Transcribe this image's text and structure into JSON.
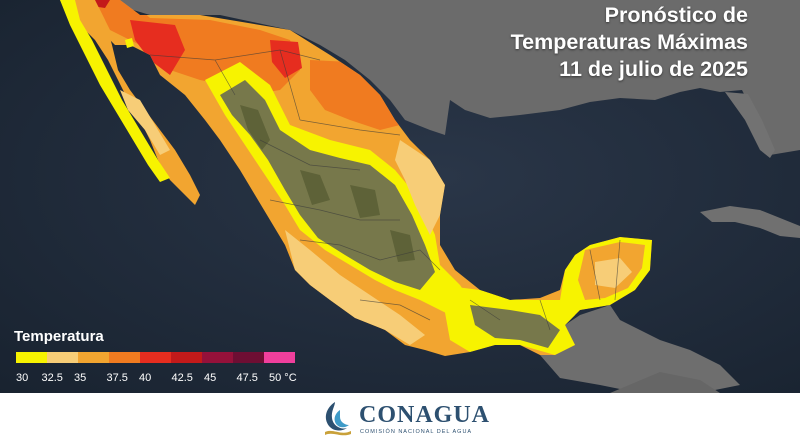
{
  "title": {
    "line1": "Pronóstico de",
    "line2": "Temperaturas Máximas",
    "line3": "11 de julio de 2025"
  },
  "legend": {
    "title": "Temperatura",
    "unit": "°C",
    "ticks": [
      "30",
      "32.5",
      "35",
      "37.5",
      "40",
      "42.5",
      "45",
      "47.5",
      "50 °C"
    ],
    "colors": [
      "#f7f300",
      "#f7cd77",
      "#f2a530",
      "#f07b20",
      "#e62d1f",
      "#c31a1a",
      "#95113a",
      "#6e0e33",
      "#f03f9c"
    ]
  },
  "map": {
    "colors": {
      "ocean": "#1f2a3a",
      "land_foreign": "#6b6b6b",
      "terrain": "#77784b",
      "band_30": "#f7f300",
      "band_32_5": "#f7cd77",
      "band_35": "#f2a530",
      "band_37_5": "#f07b20",
      "band_40": "#e62d1f",
      "band_42_5": "#c31a1a"
    }
  },
  "footer": {
    "logo_name": "CONAGUA",
    "logo_subtitle": "COMISIÓN NACIONAL DEL AGUA"
  }
}
